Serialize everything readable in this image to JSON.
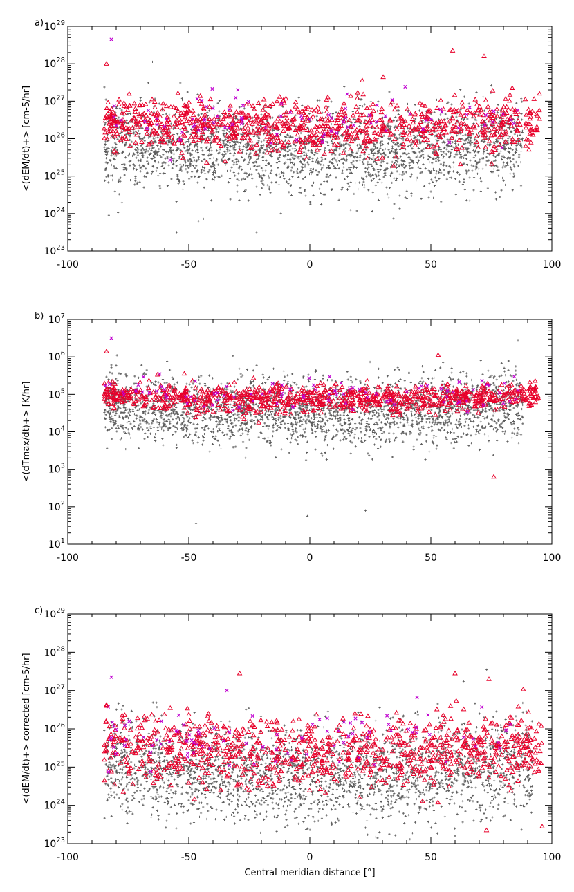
{
  "chart_data": [
    {
      "type": "scatter",
      "panel_label": "a)",
      "ylabel": "<(dEM/dt)+> [cm-5/hr]",
      "xlim": [
        -100,
        100
      ],
      "ylog": true,
      "ylim_exp": [
        23,
        29
      ],
      "x_ticks": [
        "-100",
        "-50",
        "0",
        "50",
        "100"
      ],
      "y_ticks": [
        "1023",
        "1024",
        "1025",
        "1026",
        "1027",
        "1028",
        "1029"
      ],
      "series": [
        {
          "marker": "plus",
          "color": "#5a5a5a",
          "band": {
            "x_range": [
              -85,
              88
            ],
            "y_center_exp": 25.9,
            "y_spread_exp": 0.55
          },
          "count": 2600
        },
        {
          "marker": "triangle",
          "color": "#e8002a",
          "band": {
            "x_range": [
              -85,
              95
            ],
            "y_center_exp": 26.45,
            "y_spread_exp": 0.35
          },
          "count": 900
        },
        {
          "marker": "cross",
          "color": "#c000d0",
          "band": {
            "x_range": [
              -85,
              90
            ],
            "y_center_exp": 26.6,
            "y_spread_exp": 0.35
          },
          "count": 90
        }
      ],
      "notable_points": [
        {
          "x": -82,
          "y_exp": 28.65,
          "marker": "cross"
        },
        {
          "x": -84,
          "y_exp": 28.0,
          "marker": "triangle"
        },
        {
          "x": 59,
          "y_exp": 28.35,
          "marker": "triangle"
        },
        {
          "x": 72,
          "y_exp": 28.2,
          "marker": "triangle"
        },
        {
          "x": -65,
          "y_exp": 28.05,
          "marker": "plus"
        },
        {
          "x": -55,
          "y_exp": 23.5,
          "marker": "plus"
        },
        {
          "x": -22,
          "y_exp": 23.5,
          "marker": "plus"
        },
        {
          "x": -46,
          "y_exp": 23.8,
          "marker": "plus"
        }
      ]
    },
    {
      "type": "scatter",
      "panel_label": "b)",
      "ylabel": "<(dTmax/dt)+> [K/hr]",
      "xlim": [
        -100,
        100
      ],
      "ylog": true,
      "ylim_exp": [
        1,
        7
      ],
      "x_ticks": [
        "-100",
        "-50",
        "0",
        "50",
        "100"
      ],
      "y_ticks": [
        "101",
        "102",
        "103",
        "104",
        "105",
        "106",
        "107"
      ],
      "series": [
        {
          "marker": "plus",
          "color": "#5a5a5a",
          "band": {
            "x_range": [
              -85,
              88
            ],
            "y_center_exp": 4.75,
            "y_spread_exp": 0.45
          },
          "count": 2600
        },
        {
          "marker": "triangle",
          "color": "#e8002a",
          "band": {
            "x_range": [
              -85,
              95
            ],
            "y_center_exp": 5.0,
            "y_spread_exp": 0.18
          },
          "count": 900
        },
        {
          "marker": "cross",
          "color": "#c000d0",
          "band": {
            "x_range": [
              -85,
              90
            ],
            "y_center_exp": 5.1,
            "y_spread_exp": 0.22
          },
          "count": 90
        }
      ],
      "notable_points": [
        {
          "x": -82,
          "y_exp": 6.5,
          "marker": "cross"
        },
        {
          "x": -84,
          "y_exp": 6.15,
          "marker": "triangle"
        },
        {
          "x": 86,
          "y_exp": 6.45,
          "marker": "plus"
        },
        {
          "x": 53,
          "y_exp": 6.05,
          "marker": "triangle"
        },
        {
          "x": -47,
          "y_exp": 1.55,
          "marker": "plus"
        },
        {
          "x": -1,
          "y_exp": 1.75,
          "marker": "plus"
        },
        {
          "x": 23,
          "y_exp": 1.9,
          "marker": "plus"
        },
        {
          "x": 76,
          "y_exp": 2.8,
          "marker": "triangle"
        }
      ]
    },
    {
      "type": "scatter",
      "panel_label": "c)",
      "ylabel": "<(dEM/dt)+> corrected [cm-5/hr]",
      "xlabel": "Central meridian distance [°]",
      "xlim": [
        -100,
        100
      ],
      "ylog": true,
      "ylim_exp": [
        23,
        29
      ],
      "x_ticks": [
        "-100",
        "-50",
        "0",
        "50",
        "100"
      ],
      "y_ticks": [
        "1023",
        "1024",
        "1025",
        "1026",
        "1027",
        "1028",
        "1029"
      ],
      "series": [
        {
          "marker": "plus",
          "color": "#5a5a5a",
          "band": {
            "x_range": [
              -85,
              92
            ],
            "y_center_exp": 25.05,
            "y_spread_exp": 0.6
          },
          "count": 2600
        },
        {
          "marker": "triangle",
          "color": "#e8002a",
          "band": {
            "x_range": [
              -85,
              96
            ],
            "y_center_exp": 25.55,
            "y_spread_exp": 0.45
          },
          "count": 900
        },
        {
          "marker": "cross",
          "color": "#c000d0",
          "band": {
            "x_range": [
              -85,
              90
            ],
            "y_center_exp": 25.9,
            "y_spread_exp": 0.45
          },
          "count": 90
        }
      ],
      "notable_points": [
        {
          "x": -82,
          "y_exp": 27.35,
          "marker": "cross"
        },
        {
          "x": -29,
          "y_exp": 27.45,
          "marker": "triangle"
        },
        {
          "x": 60,
          "y_exp": 27.45,
          "marker": "triangle"
        },
        {
          "x": 74,
          "y_exp": 27.3,
          "marker": "triangle"
        },
        {
          "x": 96,
          "y_exp": 23.45,
          "marker": "triangle"
        },
        {
          "x": 73,
          "y_exp": 23.35,
          "marker": "triangle"
        },
        {
          "x": 60,
          "y_exp": 23.2,
          "marker": "plus"
        },
        {
          "x": -84,
          "y_exp": 26.6,
          "marker": "triangle"
        }
      ]
    }
  ],
  "colors": {
    "background": "#ffffff",
    "axes": "#000000"
  }
}
